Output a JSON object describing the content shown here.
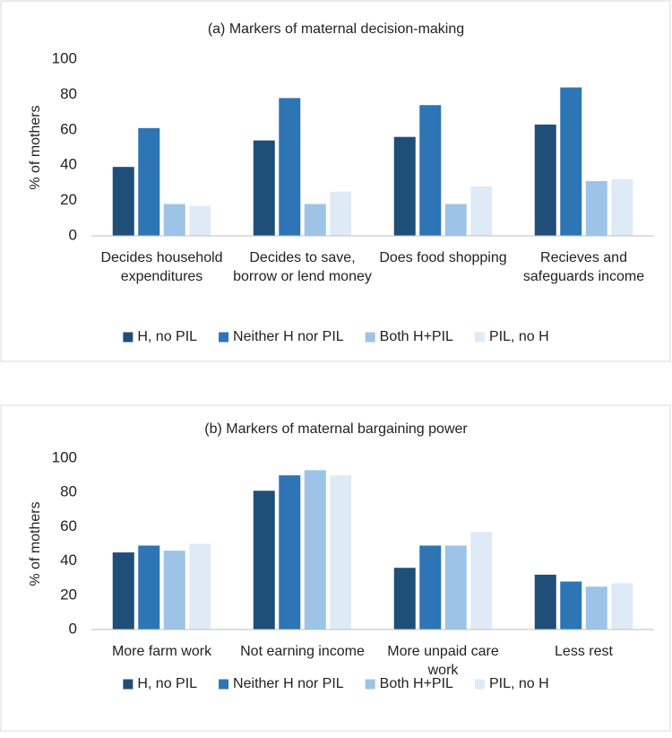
{
  "chart_data": [
    {
      "type": "bar",
      "title": "(a) Markers of maternal decision-making",
      "y_label": "% of mothers",
      "categories": [
        "Decides household expenditures",
        "Decides to save, borrow or lend money",
        "Does food shopping",
        "Recieves and safeguards income"
      ],
      "series": [
        {
          "name": "H, no PIL",
          "color": "#1f4e79",
          "values": [
            39,
            54,
            56,
            63
          ]
        },
        {
          "name": "Neither H nor PIL",
          "color": "#2e75b6",
          "values": [
            61,
            78,
            74,
            84
          ]
        },
        {
          "name": "Both H+PIL",
          "color": "#9dc3e6",
          "values": [
            18,
            18,
            18,
            31
          ]
        },
        {
          "name": "PIL, no H",
          "color": "#deebf7",
          "values": [
            17,
            25,
            28,
            32
          ]
        }
      ],
      "ylim": [
        0,
        100
      ],
      "yticks": [
        0,
        20,
        40,
        60,
        80,
        100
      ],
      "grid": false,
      "legend": "bottom"
    },
    {
      "type": "bar",
      "title": "(b) Markers of maternal bargaining power",
      "y_label": "% of mothers",
      "categories": [
        "More farm work",
        "Not earning income",
        "More unpaid care work",
        "Less rest"
      ],
      "series": [
        {
          "name": "H, no PIL",
          "color": "#1f4e79",
          "values": [
            45,
            81,
            36,
            32
          ]
        },
        {
          "name": "Neither H nor PIL",
          "color": "#2e75b6",
          "values": [
            49,
            90,
            49,
            28
          ]
        },
        {
          "name": "Both H+PIL",
          "color": "#9dc3e6",
          "values": [
            46,
            93,
            49,
            25
          ]
        },
        {
          "name": "PIL, no H",
          "color": "#deebf7",
          "values": [
            50,
            90,
            57,
            27
          ]
        }
      ],
      "ylim": [
        0,
        100
      ],
      "yticks": [
        0,
        20,
        40,
        60,
        80,
        100
      ],
      "grid": false,
      "legend": "bottom"
    }
  ]
}
